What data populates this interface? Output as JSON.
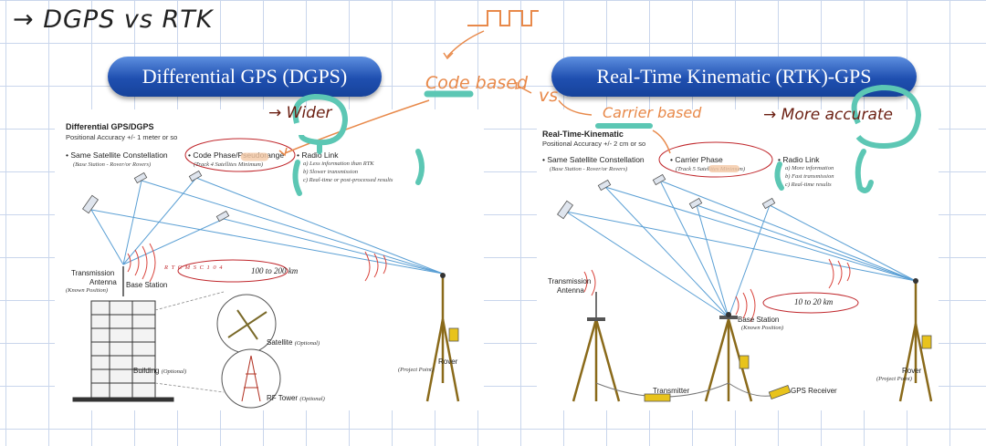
{
  "notes": {
    "heading": "→ DGPS vs RTK",
    "code_based": "Code based",
    "vs": "vs",
    "carrier_based": "Carrier based",
    "wider": "→ Wider",
    "more_accurate": "→ More accurate"
  },
  "headers": {
    "dgps": "Differential GPS (DGPS)",
    "rtk": "Real-Time Kinematic (RTK)-GPS"
  },
  "dgps": {
    "title": "Differential GPS/DGPS",
    "accuracy": "Positional Accuracy +/- 1 meter or so",
    "constellation": "• Same Satellite Constellation",
    "constellation_sub": "(Base Station - Rover/or Rovers)",
    "phase": "• Code Phase/Pseudorange",
    "phase_sub": "(Track 4 Satellites Minimum)",
    "radio": "• Radio Link",
    "radio_a": "a) Less information than RTK",
    "radio_b": "b) Slower transmission",
    "radio_c": "c) Real-time or post-processed results",
    "signal": "R T C M   S C 1 0 4",
    "distance": "100 to 200 km",
    "transmission": "Transmission",
    "antenna": "Antenna",
    "known": "(Known Position)",
    "base": "Base Station",
    "satellite": "Satellite",
    "satellite_opt": "(Optional)",
    "building": "Building",
    "building_opt": "(Optional)",
    "rf_tower": "RF Tower",
    "rf_opt": "(Optional)",
    "rover": "Rover",
    "rover_sub": "(Project Point)"
  },
  "rtk": {
    "title": "Real-Time-Kinematic",
    "accuracy": "Positional Accuracy +/- 2 cm or so",
    "constellation": "• Same Satellite Constellation",
    "constellation_sub": "(Base Station - Rover/or Rovers)",
    "phase": "• Carrier Phase",
    "phase_sub": "(Track 5 Satellites Minimum)",
    "radio": "• Radio Link",
    "radio_a": "a) More information",
    "radio_b": "b) Fast transmission",
    "radio_c": "c) Real-time results",
    "distance": "10 to 20 km",
    "transmission": "Transmission",
    "antenna": "Antenna",
    "base": "Base Station",
    "known": "(Known Position)",
    "transmitter": "Transmitter",
    "gps_receiver": "GPS Receiver",
    "rover": "Rover",
    "rover_sub": "(Project Point)"
  },
  "colors": {
    "orange_ink": "#e8894a",
    "teal_ink": "#5cc7b4",
    "maroon_ink": "#6b1f12",
    "red_circle": "#c0262b",
    "beam_blue": "#5a9fd4",
    "header_blue": "#1f4fb0"
  }
}
